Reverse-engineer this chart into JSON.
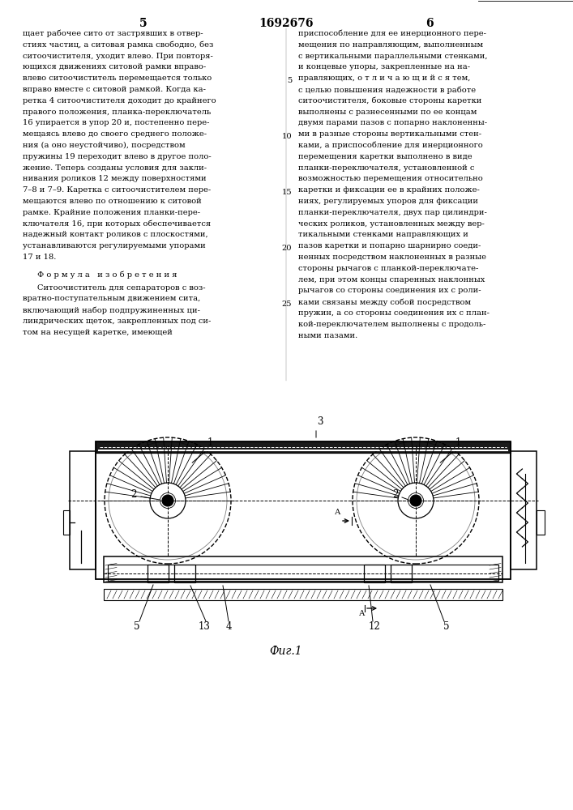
{
  "page_number_left": "5",
  "page_number_center": "1692676",
  "page_number_right": "6",
  "left_column_text": [
    "щает рабочее сито от застрявших в отвер-",
    "стиях частиц, а ситовая рамка свободно, без",
    "ситоочистителя, уходит влево. При повторя-",
    "ющихся движениях ситовой рамки вправо-",
    "влево ситоочиститель перемещается только",
    "вправо вместе с ситовой рамкой. Когда ка-",
    "ретка 4 ситоочистителя доходит до крайнего",
    "правого положения, планка-переключатель",
    "16 упирается в упор 20 и, постепенно пере-",
    "мещаясь влево до своего среднего положе-",
    "ния (а оно неустойчиво), посредством",
    "пружины 19 переходит влево в другое поло-",
    "жение. Теперь созданы условия для закли-",
    "нивания роликов 12 между поверхностями",
    "7–8 и 7–9. Каретка с ситоочистителем пере-",
    "мещаются влево по отношению к ситовой",
    "рамке. Крайние положения планки-пере-",
    "ключателя 16, при которых обеспечивается",
    "надежный контакт роликов с плоскостями,",
    "устанавливаются регулируемыми упорами",
    "17 и 18."
  ],
  "left_column_formula_header": "Ф о р м у л а   и з о б р е т е н и я",
  "left_column_formula_text": [
    "Ситоочиститель для сепараторов с воз-",
    "вратно-поступательным движением сита,",
    "включающий набор подпружиненных ци-",
    "линдрических щеток, закрепленных под си-",
    "том на несущей каретке, имеющей"
  ],
  "right_column_text": [
    "приспособление для ее инерционного пере-",
    "мещения по направляющим, выполненным",
    "с вертикальными параллельными стенками,",
    "и концевые упоры, закрепленные на на-",
    "правляющих, о т л и ч а ю щ и й с я тем,",
    "с целью повышения надежности в работе",
    "ситоочистителя, боковые стороны каретки",
    "выполнены с разнесенными по ее концам",
    "двумя парами пазов с попарно наклоненны-",
    "ми в разные стороны вертикальными стен-",
    "ками, а приспособление для инерционного",
    "перемещения каретки выполнено в виде",
    "планки-переключателя, установленной с",
    "возможностью перемещения относительно",
    "каретки и фиксации ее в крайних положе-",
    "ниях, регулируемых упоров для фиксации",
    "планки-переключателя, двух пар цилиндри-",
    "ческих роликов, установленных между вер-",
    "тикальными стенками направляющих и",
    "пазов каретки и попарно шарнирно соеди-",
    "ненных посредством наклоненных в разные",
    "стороны рычагов с планкой-переключате-",
    "лем, при этом концы спаренных наклонных",
    "рычагов со стороны соединения их с роли-",
    "ками связаны между собой посредством",
    "пружин, а со стороны соединения их с план-",
    "кой-переключателем выполнены с продоль-",
    "ными пазами."
  ],
  "line_numbers_right": [
    5,
    10,
    15,
    20,
    25
  ],
  "fig_label": "Фиг.1",
  "bg_color": "#ffffff",
  "text_color": "#000000"
}
